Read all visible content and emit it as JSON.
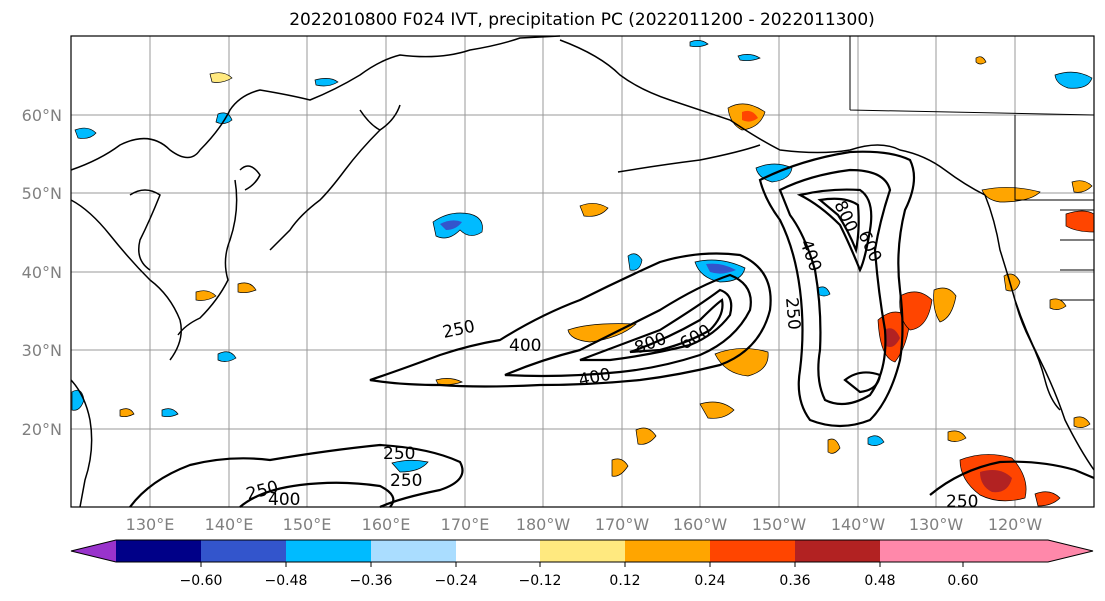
{
  "title": "2022010800 F024 IVT, precipitation PC (2022011200 - 2022011300)",
  "lat_labels": [
    "60°N",
    "50°N",
    "40°N",
    "30°N",
    "20°N"
  ],
  "lon_labels": [
    "130°E",
    "140°E",
    "150°E",
    "160°E",
    "170°E",
    "180°W",
    "170°W",
    "160°W",
    "150°W",
    "140°W",
    "130°W",
    "120°W"
  ],
  "map": {
    "extent_lon": [
      120,
      250
    ],
    "extent_lat": [
      10,
      70
    ],
    "grid": true
  },
  "ivt_contour_labels": [
    "250",
    "400",
    "800",
    "600",
    "400",
    "400",
    "800",
    "600",
    "250",
    "250",
    "250",
    "250",
    "400",
    "250"
  ],
  "colorbar": {
    "tick_labels": [
      "−0.60",
      "−0.48",
      "−0.36",
      "−0.24",
      "−0.12",
      "0.12",
      "0.24",
      "0.36",
      "0.48",
      "0.60"
    ],
    "colors": [
      "#9933cc",
      "#000088",
      "#3355cc",
      "#00bbff",
      "#aaddff",
      "#ffffff",
      "#ffe97f",
      "#ffa500",
      "#ff4500",
      "#b22222",
      "#ff88aa"
    ]
  }
}
